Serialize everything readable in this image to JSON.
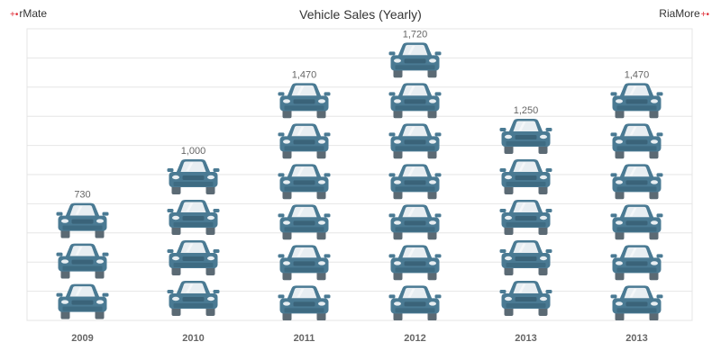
{
  "header": {
    "brand_left": "rMate",
    "brand_right": "RiaMore",
    "brand_mark": "+•"
  },
  "colors": {
    "car_body": "#4a7a93",
    "car_window": "#e8eef2",
    "car_dark": "#5b6a74",
    "label": "#666666",
    "grid": "#e6e6e6",
    "plot_border": "#e4e4e4"
  },
  "chart_data": {
    "type": "bar",
    "title": "Vehicle Sales (Yearly)",
    "xlabel": "",
    "ylabel": "",
    "categories": [
      "2009",
      "2010",
      "2011",
      "2012",
      "2013",
      "2013"
    ],
    "values": [
      730,
      1000,
      1470,
      1720,
      1250,
      1470
    ],
    "value_labels": [
      "730",
      "1,000",
      "1,470",
      "1,720",
      "1,250",
      "1,470"
    ],
    "ylim": [
      0,
      1800
    ],
    "grid": true,
    "icon": "car-icon",
    "units_per_icon": 250
  }
}
